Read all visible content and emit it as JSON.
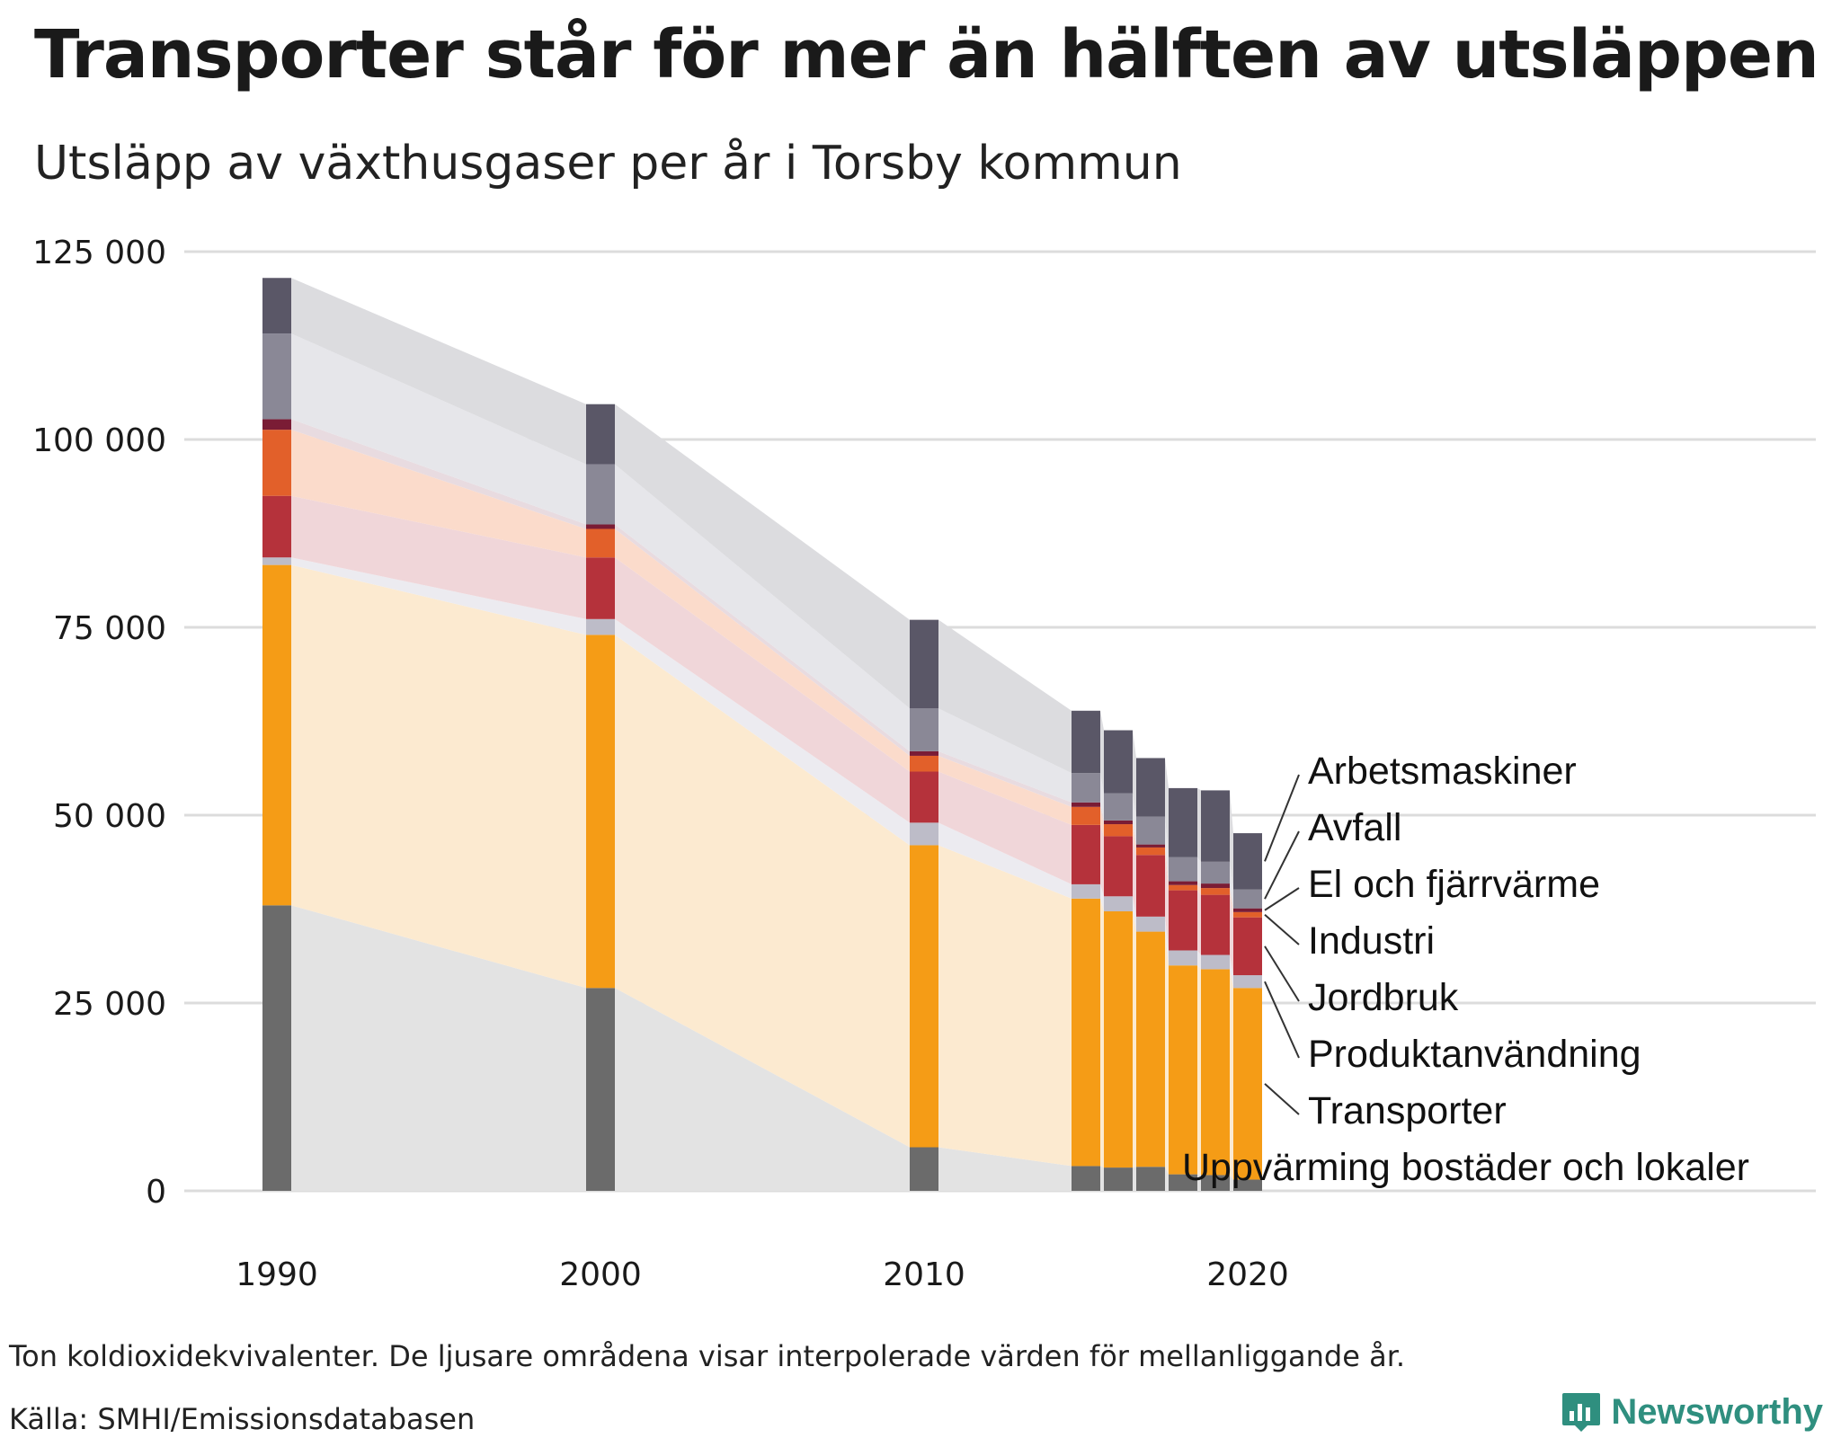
{
  "title": "Transporter står för mer än hälften av utsläppen",
  "subtitle": "Utsläpp av växthusgaser per år i Torsby kommun",
  "note": "Ton koldioxidekvivalenter. De ljusare områdena visar interpolerade värden för mellanliggande år.",
  "source": "Källa: SMHI/Emissionsdatabasen",
  "brand": "Newsworthy",
  "chart_data": {
    "type": "bar",
    "stacked": true,
    "title": "Transporter står för mer än hälften av utsläppen",
    "subtitle": "Utsläpp av växthusgaser per år i Torsby kommun",
    "xlabel": "",
    "ylabel": "Ton koldioxidekvivalenter",
    "ylim": [
      0,
      125000
    ],
    "yticks": [
      0,
      25000,
      50000,
      75000,
      100000,
      125000
    ],
    "ytick_labels": [
      "0",
      "25 000",
      "50 000",
      "75 000",
      "100 000",
      "125 000"
    ],
    "xticks": [
      1990,
      2000,
      2010,
      2020
    ],
    "xtick_labels": [
      "1990",
      "2000",
      "2010",
      "2020"
    ],
    "grid": true,
    "categories": [
      1990,
      2000,
      2010,
      2015,
      2016,
      2017,
      2018,
      2019,
      2020
    ],
    "series": [
      {
        "name": "Uppvärming bostäder och lokaler",
        "color": "#6b6b6b",
        "band_color": "#e3e3e3",
        "values": [
          38000,
          27000,
          5800,
          3300,
          3100,
          3200,
          2200,
          2100,
          1500
        ]
      },
      {
        "name": "Transporter",
        "color": "#f59c16",
        "band_color": "#fcead0",
        "values": [
          45300,
          47000,
          40200,
          35600,
          34100,
          31300,
          27800,
          27400,
          25500
        ]
      },
      {
        "name": "Produktanvändning",
        "color": "#bdbcc8",
        "band_color": "#ecebf0",
        "values": [
          1000,
          2100,
          3000,
          1900,
          2000,
          2000,
          2000,
          1900,
          1700
        ]
      },
      {
        "name": "Jordbruk",
        "color": "#b5323b",
        "band_color": "#f0d6d9",
        "values": [
          8200,
          8200,
          6800,
          7900,
          8000,
          8200,
          8000,
          8000,
          7700
        ]
      },
      {
        "name": "Industri",
        "color": "#e2602a",
        "band_color": "#fbdbcb",
        "values": [
          8800,
          3800,
          2100,
          2400,
          1600,
          1000,
          700,
          900,
          700
        ]
      },
      {
        "name": "El och fjärrvärme",
        "color": "#7a1c35",
        "band_color": "#e8dbe0",
        "values": [
          1400,
          600,
          600,
          600,
          500,
          400,
          500,
          600,
          500
        ]
      },
      {
        "name": "Avfall",
        "color": "#8a8896",
        "band_color": "#e6e6ea",
        "values": [
          11400,
          8000,
          5700,
          3900,
          3600,
          3700,
          3200,
          2900,
          2500
        ]
      },
      {
        "name": "Arbetsmaskiner",
        "color": "#5a5767",
        "band_color": "#dcdcdf",
        "values": [
          7400,
          8000,
          11800,
          8300,
          8400,
          7800,
          9200,
          9500,
          7500
        ]
      }
    ],
    "label_order_top_to_bottom": [
      "Arbetsmaskiner",
      "Avfall",
      "El och fjärrvärme",
      "Industri",
      "Jordbruk",
      "Produktanvändning",
      "Transporter",
      "Uppvärming bostäder och lokaler"
    ],
    "legend": "right, direct labels"
  }
}
